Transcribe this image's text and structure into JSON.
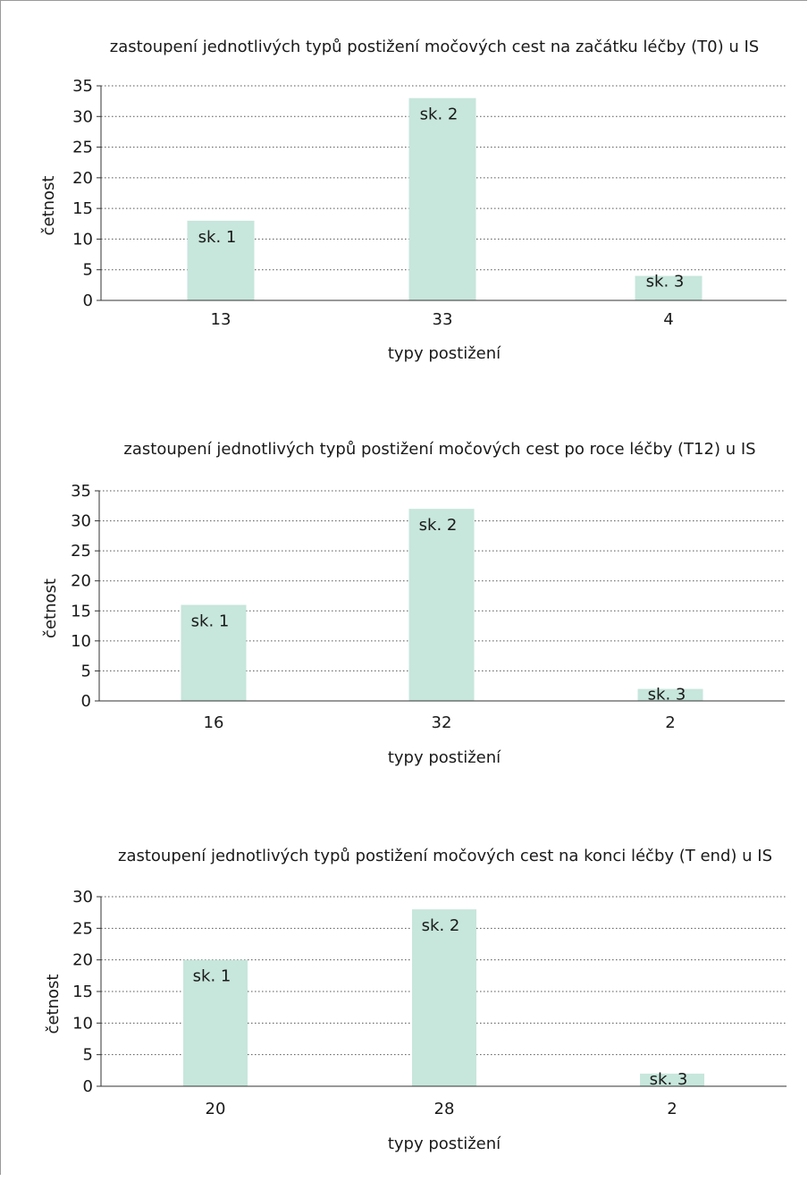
{
  "chart_data": [
    {
      "type": "bar",
      "title": "zastoupení jednotlivých typů postižení močových cest na začátku léčby (T0) u IS",
      "xlabel": "typy postižení",
      "ylabel": "četnost",
      "ylim": [
        0,
        35
      ],
      "yticks": [
        0,
        5,
        10,
        15,
        20,
        25,
        30,
        35
      ],
      "categories": [
        "13",
        "33",
        "4"
      ],
      "values": [
        13,
        33,
        4
      ],
      "bar_labels": [
        "sk. 1",
        "sk. 2",
        "sk. 3"
      ],
      "grid": "horizontal dotted",
      "bar_color": "#c7e6dc"
    },
    {
      "type": "bar",
      "title": "zastoupení jednotlivých typů postižení močových cest po roce léčby (T12) u IS",
      "xlabel": "typy postižení",
      "ylabel": "četnost",
      "ylim": [
        0,
        35
      ],
      "yticks": [
        0,
        5,
        10,
        15,
        20,
        25,
        30,
        35
      ],
      "categories": [
        "16",
        "32",
        "2"
      ],
      "values": [
        16,
        32,
        2
      ],
      "bar_labels": [
        "sk. 1",
        "sk. 2",
        "sk. 3"
      ],
      "grid": "horizontal dotted",
      "bar_color": "#c7e6dc"
    },
    {
      "type": "bar",
      "title": "zastoupení jednotlivých typů postižení močových cest na konci léčby (T end) u IS",
      "xlabel": "typy postižení",
      "ylabel": "četnost",
      "ylim": [
        0,
        30
      ],
      "yticks": [
        0,
        5,
        10,
        15,
        20,
        25,
        30
      ],
      "categories": [
        "20",
        "28",
        "2"
      ],
      "values": [
        20,
        28,
        2
      ],
      "bar_labels": [
        "sk. 1",
        "sk. 2",
        "sk. 3"
      ],
      "grid": "horizontal dotted",
      "bar_color": "#c7e6dc"
    }
  ]
}
